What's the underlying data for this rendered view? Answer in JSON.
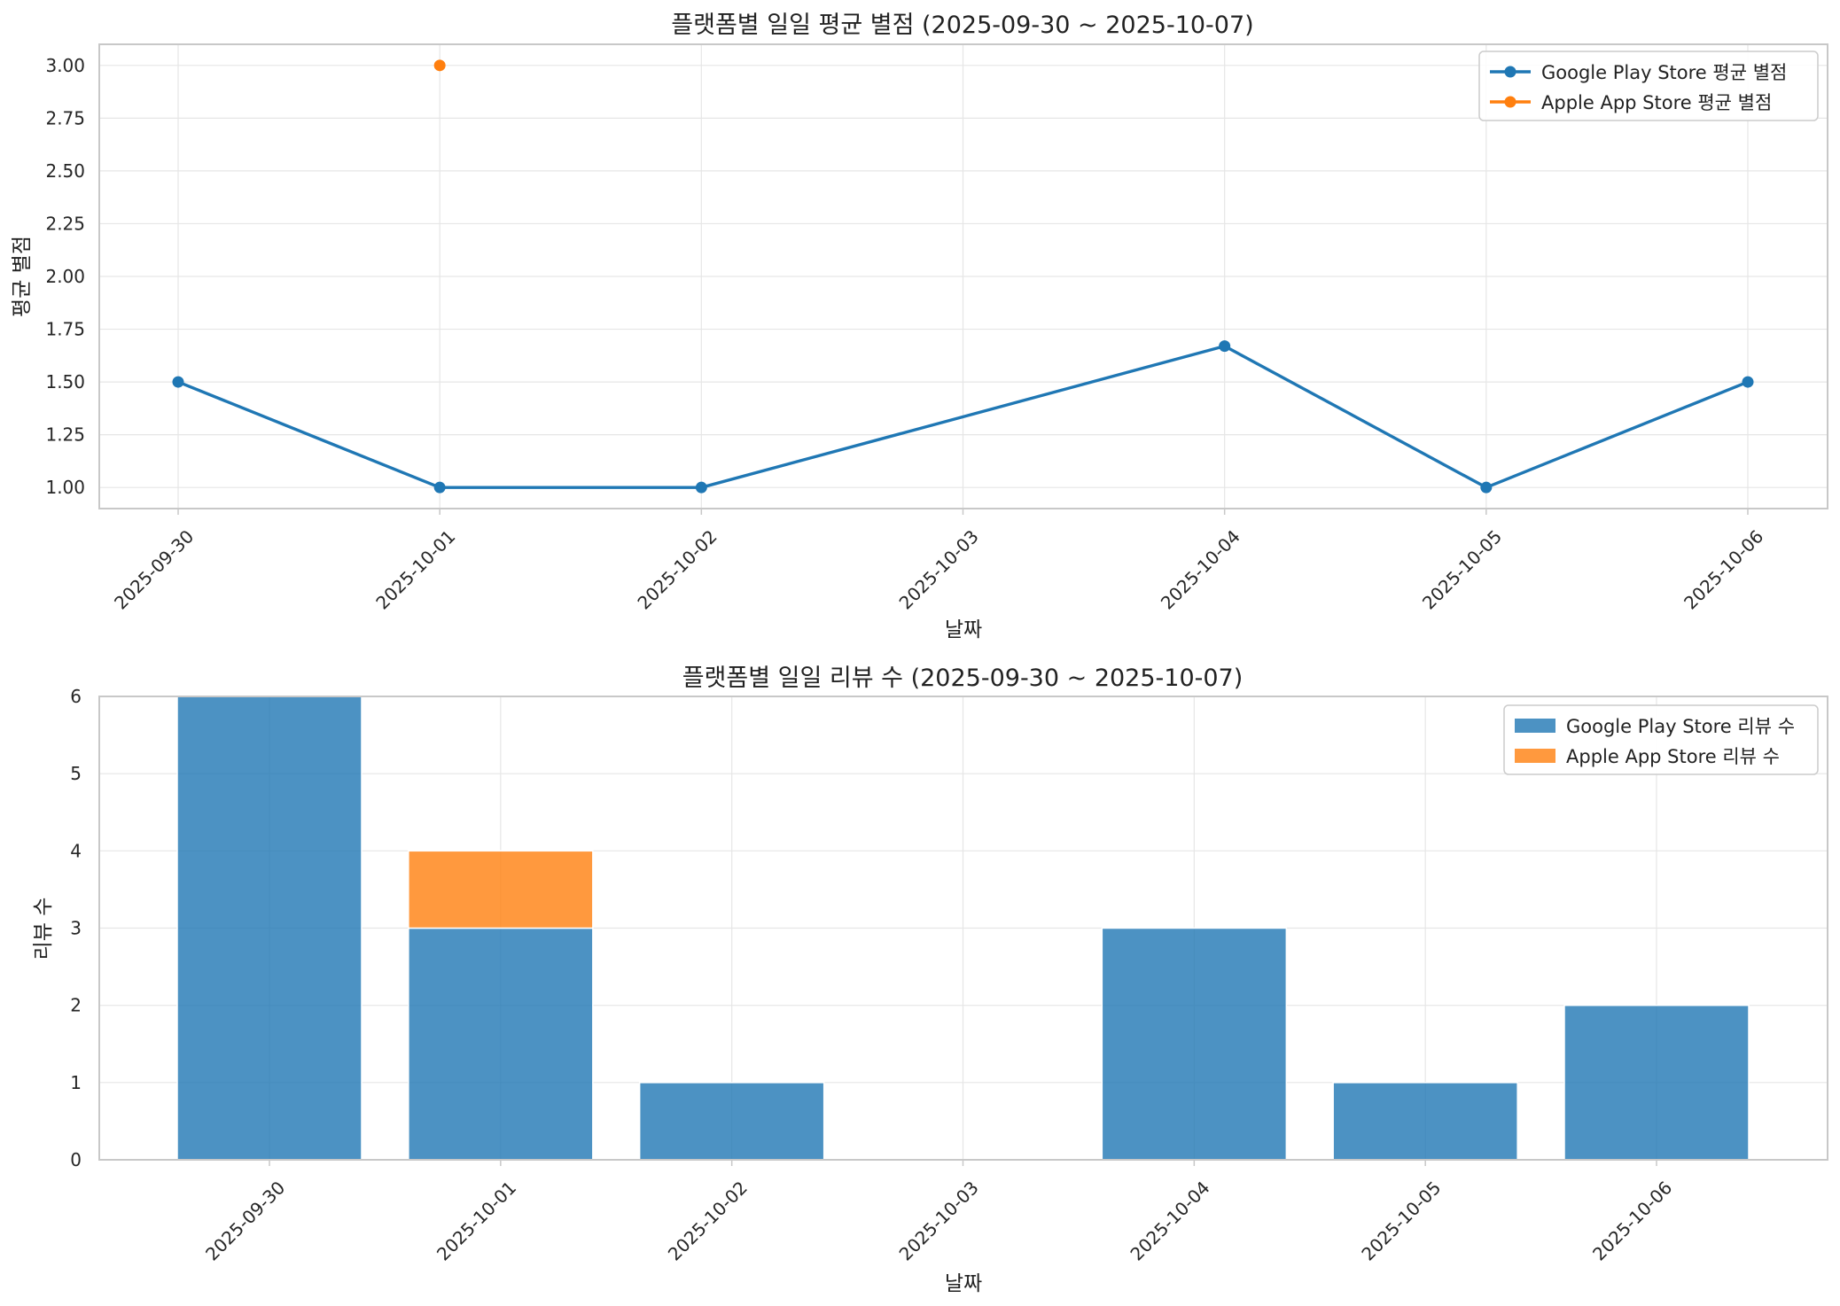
{
  "chart_data": [
    {
      "type": "line",
      "title": "플랫폼별 일일 평균 별점 (2025-09-30 ~ 2025-10-07)",
      "xlabel": "날짜",
      "ylabel": "평균 별점",
      "categories": [
        "2025-09-30",
        "2025-10-01",
        "2025-10-02",
        "2025-10-03",
        "2025-10-04",
        "2025-10-05",
        "2025-10-06"
      ],
      "yticks": [
        "1.00",
        "1.25",
        "1.50",
        "1.75",
        "2.00",
        "2.25",
        "2.50",
        "2.75",
        "3.00"
      ],
      "ylim": [
        0.9,
        3.1
      ],
      "grid": true,
      "legend_position": "top-right",
      "series": [
        {
          "name": "Google Play Store 평균 별점",
          "color": "#1f77b4",
          "points": [
            {
              "x": "2025-09-30",
              "y": 1.5
            },
            {
              "x": "2025-10-01",
              "y": 1.0
            },
            {
              "x": "2025-10-02",
              "y": 1.0
            },
            {
              "x": "2025-10-04",
              "y": 1.67
            },
            {
              "x": "2025-10-05",
              "y": 1.0
            },
            {
              "x": "2025-10-06",
              "y": 1.5
            }
          ]
        },
        {
          "name": "Apple App Store 평균 별점",
          "color": "#ff7f0e",
          "points": [
            {
              "x": "2025-10-01",
              "y": 3.0
            }
          ]
        }
      ]
    },
    {
      "type": "bar",
      "stacked": true,
      "title": "플랫폼별 일일 리뷰 수 (2025-09-30 ~ 2025-10-07)",
      "xlabel": "날짜",
      "ylabel": "리뷰 수",
      "categories": [
        "2025-09-30",
        "2025-10-01",
        "2025-10-02",
        "2025-10-03",
        "2025-10-04",
        "2025-10-05",
        "2025-10-06"
      ],
      "yticks": [
        "0",
        "1",
        "2",
        "3",
        "4",
        "5",
        "6"
      ],
      "ylim": [
        0,
        6
      ],
      "grid": true,
      "legend_position": "top-right",
      "series": [
        {
          "name": "Google Play Store 리뷰 수",
          "color": "#1f77b4",
          "values": [
            6,
            3,
            1,
            0,
            3,
            1,
            2
          ]
        },
        {
          "name": "Apple App Store 리뷰 수",
          "color": "#ff7f0e",
          "values": [
            0,
            1,
            0,
            0,
            0,
            0,
            0
          ]
        }
      ]
    }
  ]
}
